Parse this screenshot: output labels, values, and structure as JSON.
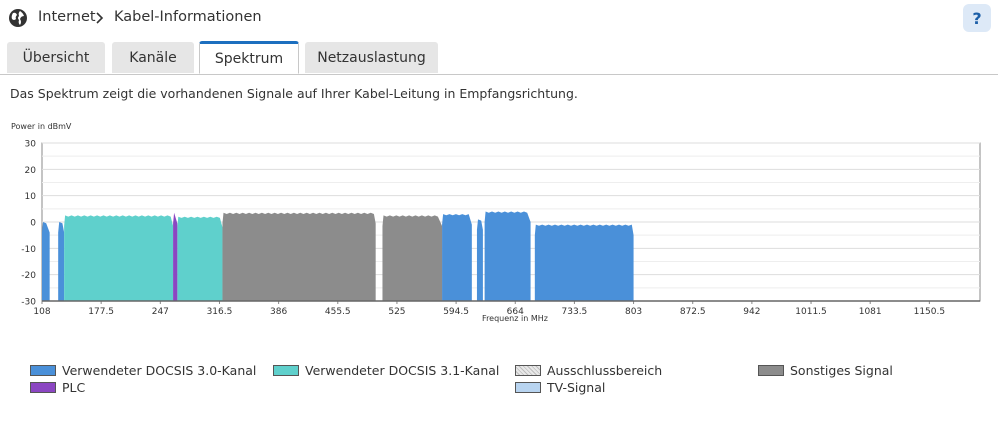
{
  "breadcrumb": {
    "root": "Internet",
    "current": "Kabel-Informationen"
  },
  "help_label": "?",
  "tabs": [
    {
      "label": "Übersicht",
      "active": false
    },
    {
      "label": "Kanäle",
      "active": false
    },
    {
      "label": "Spektrum",
      "active": true
    },
    {
      "label": "Netzauslastung",
      "active": false
    }
  ],
  "description": "Das Spektrum zeigt die vorhandenen Signale auf Ihrer Kabel-Leitung in Empfangsrichtung.",
  "chart_data": {
    "type": "area",
    "ylabel": "Power in dBmV",
    "xlabel": "Frequenz in MHz",
    "ylim": [
      -30,
      30
    ],
    "xlim": [
      108,
      1210
    ],
    "yticks": [
      "30",
      "20",
      "10",
      "0",
      "-10",
      "-20",
      "-30"
    ],
    "xticks": [
      "108",
      "177.5",
      "247",
      "316.5",
      "386",
      "455.5",
      "525",
      "594.5",
      "664",
      "733.5",
      "803",
      "872.5",
      "942",
      "1011.5",
      "1081",
      "1150.5"
    ],
    "grid": true,
    "colors": {
      "docsis30": "#4a90d9",
      "docsis31": "#5fd0cc",
      "plc": "#8b46c2",
      "other": "#8c8c8c",
      "exclusion": "#e8e8e8",
      "tv": "#b8d4f0"
    },
    "series": [
      {
        "name": "Verwendeter DOCSIS 3.0-Kanal",
        "color": "docsis30",
        "segments": [
          [
            108,
            117,
            0
          ],
          [
            127,
            134,
            0
          ],
          [
            578,
            613,
            3
          ],
          [
            619,
            626,
            1
          ],
          [
            628,
            682,
            4
          ],
          [
            687,
            803,
            -1
          ]
        ]
      },
      {
        "name": "Verwendeter DOCSIS 3.1-Kanal",
        "color": "docsis31",
        "segments": [
          [
            134,
            262,
            2.5
          ],
          [
            267,
            320,
            2
          ]
        ]
      },
      {
        "name": "PLC",
        "color": "plc",
        "segments": [
          [
            262,
            267,
            3.5
          ]
        ]
      },
      {
        "name": "Sonstiges Signal",
        "color": "other",
        "segments": [
          [
            320,
            500,
            3.5
          ],
          [
            508,
            578,
            2.5
          ]
        ]
      }
    ]
  },
  "legend": [
    {
      "label": "Verwendeter DOCSIS 3.0-Kanal",
      "color": "#4a90d9"
    },
    {
      "label": "Verwendeter DOCSIS 3.1-Kanal",
      "color": "#5fd0cc"
    },
    {
      "label": "Ausschlussbereich",
      "color": "#e8e8e8"
    },
    {
      "label": "Sonstiges Signal",
      "color": "#8c8c8c"
    },
    {
      "label": "PLC",
      "color": "#8b46c2"
    },
    {
      "label": "TV-Signal",
      "color": "#b8d4f0"
    }
  ]
}
